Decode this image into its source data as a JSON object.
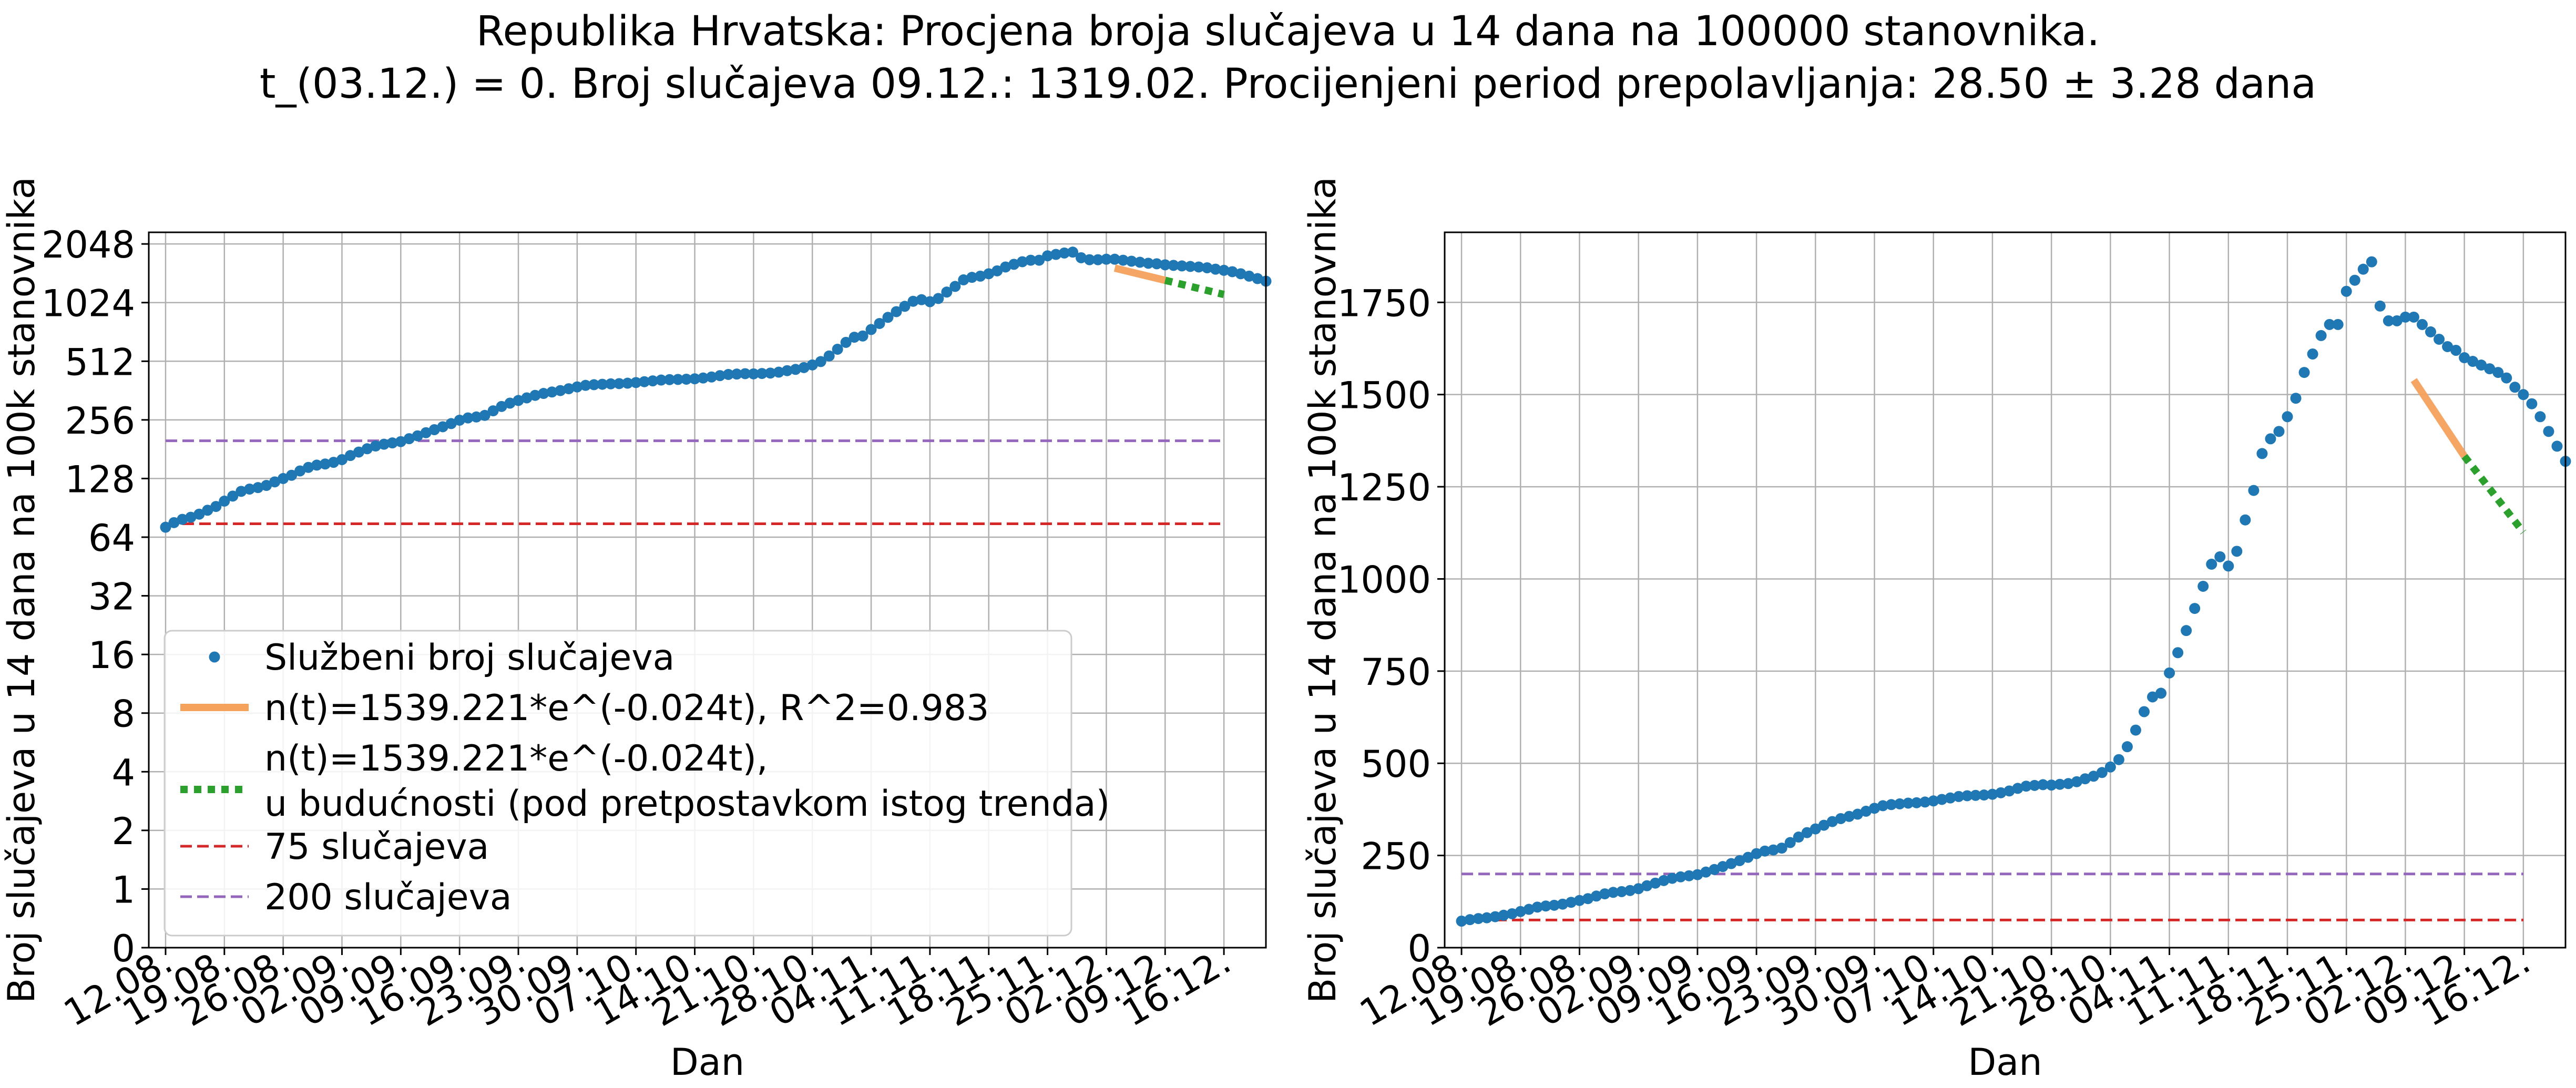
{
  "figure": {
    "title_line1": "Republika Hrvatska: Procjena broja slučajeva u 14 dana na 100000 stanovnika.",
    "title_line2": "t_(03.12.) = 0. Broj slučajeva 09.12.: 1319.02. Procijenjeni period prepolavljanja: 28.50 ± 3.28 dana"
  },
  "colors": {
    "observed": "#1f77b4",
    "fit": "#f5a25d",
    "projection": "#2ca02c",
    "line75": "#d62728",
    "line200": "#9467bd",
    "grid": "#b0b0b0"
  },
  "chart_data": [
    {
      "type": "scatter",
      "yscale": "log2",
      "xlabel": "Dan",
      "ylabel": "Broj slučajeva u 14 dana na 100k stanovnika",
      "x_ticks": [
        "12.08.",
        "19.08.",
        "26.08.",
        "02.09.",
        "09.09.",
        "16.09.",
        "23.09.",
        "30.09.",
        "07.10.",
        "14.10.",
        "21.10.",
        "28.10.",
        "04.11.",
        "11.11.",
        "18.11.",
        "25.11.",
        "02.12.",
        "09.12.",
        "16.12."
      ],
      "y_ticks": [
        "0",
        "1",
        "2",
        "4",
        "8",
        "16",
        "32",
        "64",
        "128",
        "256",
        "512",
        "1024",
        "2048"
      ],
      "xlim": [
        "10.08.",
        "21.12."
      ],
      "grid": true,
      "legend_position": "lower-left",
      "legend": [
        "Službeni broj slučajeva",
        "n(t)=1539.221*e^(-0.024t), R^2=0.983",
        "n(t)=1539.221*e^(-0.024t),\nu budućnosti (pod pretpostavkom istog trenda)",
        "75 slučajeva",
        "200 slučajeva"
      ]
    },
    {
      "type": "scatter",
      "yscale": "linear",
      "xlabel": "Dan",
      "ylabel": "Broj slučajeva u 14 dana na 100k stanovnika",
      "x_ticks": [
        "12.08.",
        "19.08.",
        "26.08.",
        "02.09.",
        "09.09.",
        "16.09.",
        "23.09.",
        "30.09.",
        "07.10.",
        "14.10.",
        "21.10.",
        "28.10.",
        "04.11.",
        "11.11.",
        "18.11.",
        "25.11.",
        "02.12.",
        "09.12.",
        "16.12."
      ],
      "y_ticks": [
        "0",
        "250",
        "500",
        "750",
        "1000",
        "1250",
        "1500",
        "1750"
      ],
      "xlim": [
        "10.08.",
        "21.12."
      ],
      "ylim": [
        0,
        1940
      ],
      "grid": true
    }
  ],
  "series": {
    "observed": {
      "name": "Službeni broj slučajeva",
      "start_date": "12.08.",
      "values": [
        72,
        76,
        79,
        81,
        84,
        88,
        92,
        98,
        104,
        110,
        113,
        115,
        118,
        123,
        128,
        133,
        140,
        146,
        150,
        152,
        155,
        160,
        168,
        175,
        182,
        188,
        192,
        195,
        198,
        205,
        212,
        220,
        228,
        236,
        245,
        255,
        262,
        265,
        270,
        285,
        300,
        312,
        322,
        332,
        342,
        350,
        356,
        362,
        370,
        378,
        385,
        388,
        390,
        392,
        393,
        395,
        398,
        402,
        406,
        410,
        412,
        413,
        414,
        416,
        420,
        425,
        432,
        438,
        440,
        442,
        441,
        443,
        445,
        450,
        458,
        465,
        475,
        490,
        510,
        545,
        590,
        640,
        680,
        690,
        745,
        800,
        860,
        920,
        980,
        1040,
        1060,
        1035,
        1075,
        1160,
        1240,
        1340,
        1380,
        1400,
        1440,
        1490,
        1560,
        1610,
        1660,
        1690,
        1690,
        1780,
        1810,
        1840,
        1860,
        1740,
        1700,
        1700,
        1710,
        1710,
        1690,
        1670,
        1650,
        1630,
        1620,
        1600,
        1590,
        1580,
        1570,
        1560,
        1545,
        1520,
        1500,
        1475,
        1440,
        1400,
        1360,
        1319.02
      ]
    },
    "fit": {
      "name": "n(t)=1539.221*e^(-0.024t), R^2=0.983",
      "amplitude": 1539.221,
      "rate": -0.024,
      "r_squared": 0.983,
      "t_zero": "03.12.",
      "from": "03.12.",
      "to": "09.12."
    },
    "projection": {
      "name": "n(t)=1539.221*e^(-0.024t),\nu budućnosti (pod pretpostavkom istog trenda)",
      "from": "09.12.",
      "to": "16.12."
    },
    "line75": {
      "name": "75 slučajeva",
      "value": 75
    },
    "line200": {
      "name": "200 slučajeva",
      "value": 200
    }
  }
}
